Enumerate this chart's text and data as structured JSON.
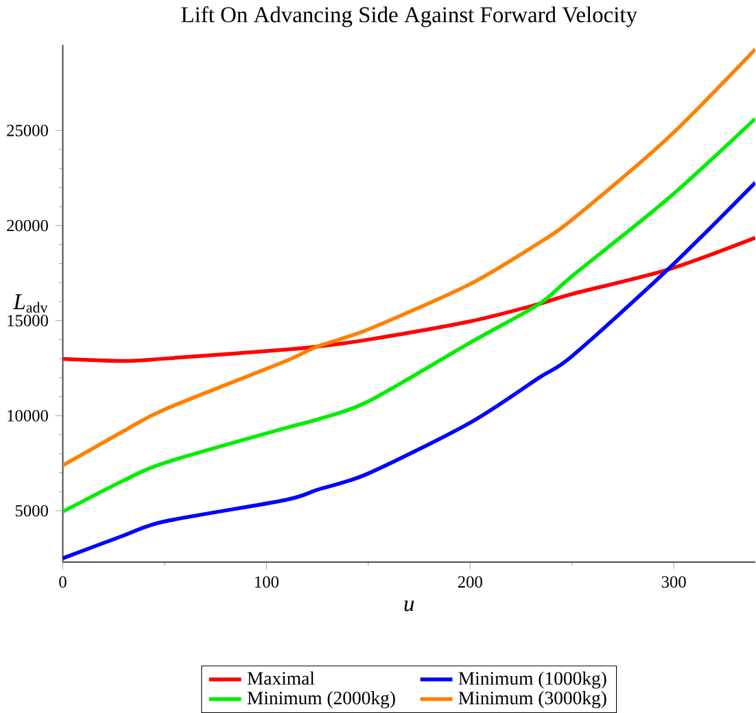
{
  "chart_data": {
    "type": "line",
    "title": "Lift On Advancing Side Against Forward Velocity",
    "xlabel": "u",
    "ylabel": "*L*$_{adv}$",
    "x": [
      0,
      30,
      50,
      109,
      125,
      150,
      200,
      234,
      250,
      297,
      340
    ],
    "xlim": [
      0,
      340
    ],
    "ylim": [
      2300,
      29500
    ],
    "xticks": [
      0,
      100,
      200,
      300
    ],
    "yticks": [
      5000,
      10000,
      15000,
      20000,
      25000
    ],
    "legend": "bottom",
    "grid": false,
    "marker": "none",
    "line_style": "solid",
    "series": [
      {
        "name": "Maximal",
        "color": "#ff0000",
        "values": [
          12990,
          12880,
          13000,
          13470,
          13640,
          14000,
          14960,
          15880,
          16400,
          17680,
          19360
        ]
      },
      {
        "name": "Minimum (1000kg)",
        "color": "#0000ff",
        "values": [
          2500,
          3700,
          4440,
          5560,
          6100,
          6960,
          9630,
          12010,
          13130,
          17680,
          22260
        ]
      },
      {
        "name": "Minimum (2000kg)",
        "color": "#00ee00",
        "values": [
          4950,
          6600,
          7520,
          9340,
          9800,
          10750,
          13840,
          15880,
          17340,
          21400,
          25620
        ]
      },
      {
        "name": "Minimum (3000kg)",
        "color": "#ff8000",
        "values": [
          7380,
          9200,
          10330,
          12850,
          13640,
          14540,
          16920,
          19100,
          20300,
          24600,
          29270
        ]
      }
    ]
  }
}
